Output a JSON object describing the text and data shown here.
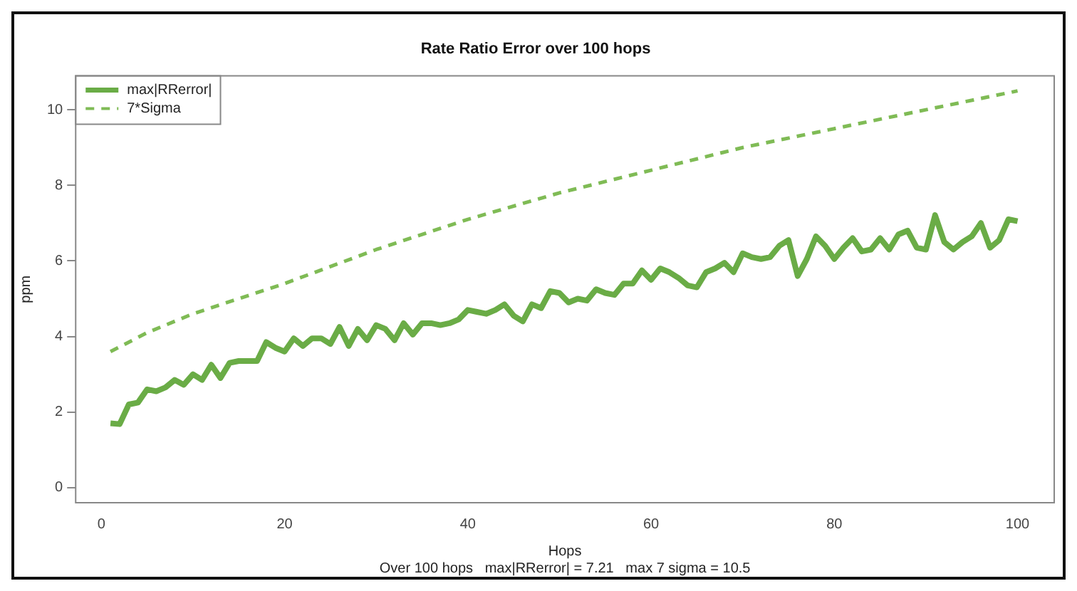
{
  "chart_data": {
    "type": "line",
    "title": "Rate Ratio Error over 100 hops",
    "xlabel": "Hops",
    "ylabel": "ppm",
    "annotations": [
      "Over 100 hops   max|RRerror| = 7.21   max 7 sigma = 10.5"
    ],
    "xlim": [
      -2.8,
      104
    ],
    "xticks": [
      0,
      20,
      40,
      60,
      80,
      100
    ],
    "ylim": [
      -0.4,
      10.9
    ],
    "yticks": [
      0,
      2,
      4,
      6,
      8,
      10
    ],
    "grid": false,
    "legend": "top left",
    "series": [
      {
        "name": "max|RRerror|",
        "color": "#6aac46",
        "line_style": "solid",
        "x": [
          1,
          2,
          3,
          4,
          5,
          6,
          7,
          8,
          9,
          10,
          11,
          12,
          13,
          14,
          15,
          16,
          17,
          18,
          19,
          20,
          21,
          22,
          23,
          24,
          25,
          26,
          27,
          28,
          29,
          30,
          31,
          32,
          33,
          34,
          35,
          36,
          37,
          38,
          39,
          40,
          41,
          42,
          43,
          44,
          45,
          46,
          47,
          48,
          49,
          50,
          51,
          52,
          53,
          54,
          55,
          56,
          57,
          58,
          59,
          60,
          61,
          62,
          63,
          64,
          65,
          66,
          67,
          68,
          69,
          70,
          71,
          72,
          73,
          74,
          75,
          76,
          77,
          78,
          79,
          80,
          81,
          82,
          83,
          84,
          85,
          86,
          87,
          88,
          89,
          90,
          91,
          92,
          93,
          94,
          95,
          96,
          97,
          98,
          99,
          100
        ],
        "values": [
          1.7,
          1.68,
          2.2,
          2.25,
          2.6,
          2.55,
          2.65,
          2.85,
          2.72,
          3.0,
          2.85,
          3.25,
          2.9,
          3.3,
          3.35,
          3.35,
          3.35,
          3.85,
          3.7,
          3.6,
          3.95,
          3.75,
          3.95,
          3.95,
          3.8,
          4.25,
          3.75,
          4.2,
          3.9,
          4.3,
          4.2,
          3.9,
          4.35,
          4.05,
          4.35,
          4.35,
          4.3,
          4.35,
          4.45,
          4.7,
          4.65,
          4.6,
          4.7,
          4.85,
          4.55,
          4.4,
          4.85,
          4.75,
          5.2,
          5.15,
          4.9,
          5.0,
          4.95,
          5.25,
          5.15,
          5.1,
          5.4,
          5.4,
          5.75,
          5.5,
          5.8,
          5.7,
          5.55,
          5.35,
          5.3,
          5.7,
          5.8,
          5.95,
          5.7,
          6.2,
          6.1,
          6.05,
          6.1,
          6.4,
          6.55,
          5.6,
          6.05,
          6.65,
          6.4,
          6.05,
          6.35,
          6.6,
          6.25,
          6.3,
          6.6,
          6.3,
          6.7,
          6.8,
          6.35,
          6.3,
          7.21,
          6.5,
          6.3,
          6.5,
          6.65,
          7.0,
          6.35,
          6.55,
          7.1,
          7.05
        ]
      },
      {
        "name": "7*Sigma",
        "color": "#7fbb55",
        "line_style": "dashed",
        "x": [
          1,
          5,
          10,
          20,
          30,
          40,
          50,
          60,
          70,
          80,
          90,
          100
        ],
        "values": [
          3.6,
          4.1,
          4.6,
          5.4,
          6.3,
          7.1,
          7.8,
          8.4,
          9.0,
          9.5,
          10.0,
          10.5
        ]
      }
    ]
  }
}
